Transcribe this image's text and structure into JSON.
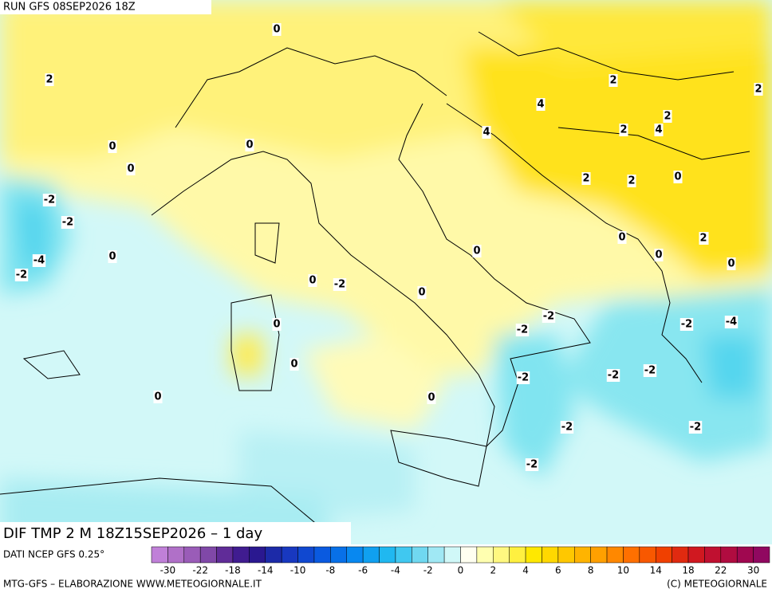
{
  "header": {
    "run": "RUN GFS 08SEP2026 18Z"
  },
  "map": {
    "title": "DIF TMP 2 M 18Z15SEP2026 – 1 day",
    "source": "DATI NCEP GFS 0.25°",
    "contour_labels": [
      "0",
      "2",
      "0",
      "0",
      "2",
      "4",
      "2",
      "4",
      "2",
      "2",
      "4",
      "2",
      "2",
      "-2",
      "-2",
      "0",
      "-4",
      "-2",
      "0",
      "0",
      "0",
      "0",
      "2",
      "0",
      "0",
      "0",
      "0",
      "-2",
      "0",
      "-2",
      "-2",
      "-2",
      "-4",
      "-2",
      "0",
      "0",
      "-2",
      "0",
      "0",
      "-2",
      "-2",
      "-2",
      "-2"
    ]
  },
  "colorbar": {
    "ticks": [
      "-30",
      "-22",
      "-18",
      "-14",
      "-10",
      "-8",
      "-6",
      "-4",
      "-2",
      "0",
      "2",
      "4",
      "6",
      "8",
      "10",
      "14",
      "18",
      "22",
      "30"
    ]
  },
  "footer": {
    "left": "MTG-GFS – ELABORAZIONE WWW.METEOGIORNALE.IT",
    "right": "(C) METEOGIORNALE"
  }
}
